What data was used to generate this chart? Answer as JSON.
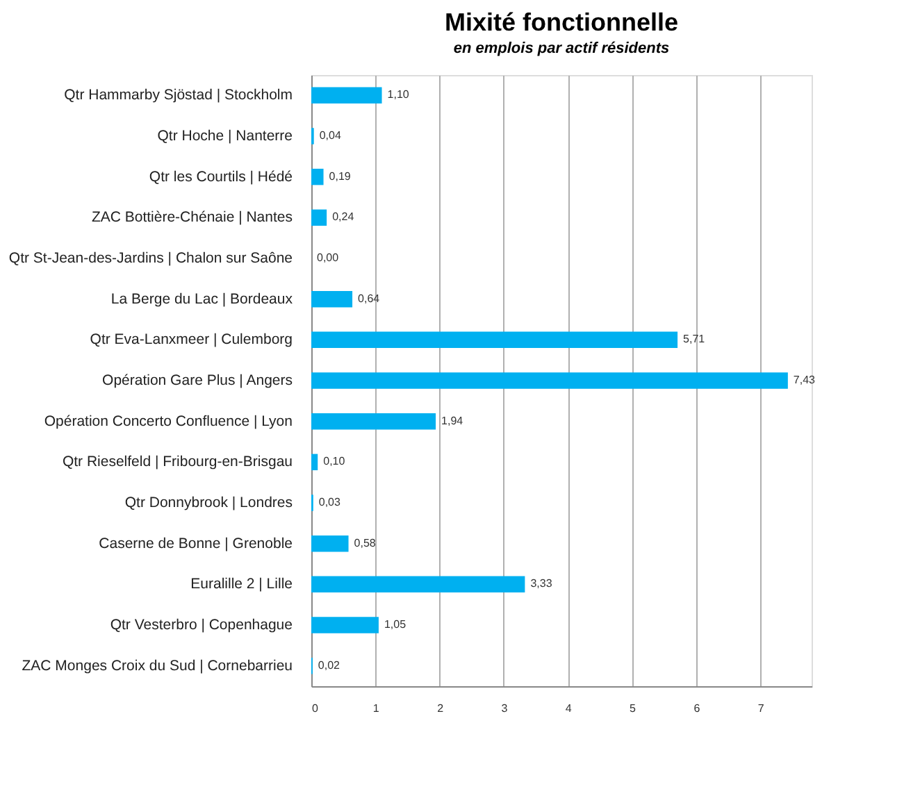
{
  "chart_data": {
    "type": "bar",
    "orientation": "horizontal",
    "title": "Mixité fonctionnelle",
    "subtitle": "en emplois par actif résidents",
    "categories": [
      "Qtr Hammarby Sjöstad  |  Stockholm",
      "Qtr Hoche | Nanterre",
      "Qtr les Courtils | Hédé",
      "ZAC Bottière-Chénaie | Nantes",
      "Qtr St-Jean-des-Jardins | Chalon sur Saône",
      "La Berge du Lac | Bordeaux",
      "Qtr Eva-Lanxmeer | Culemborg",
      "Opération Gare Plus | Angers",
      "Opération Concerto Confluence | Lyon",
      "Qtr Rieselfeld | Fribourg-en-Brisgau",
      "Qtr Donnybrook | Londres",
      "Caserne de Bonne | Grenoble",
      "Euralille 2 | Lille",
      "Qtr Vesterbro | Copenhague",
      "ZAC Monges Croix du Sud | Cornebarrieu"
    ],
    "values": [
      1.1,
      0.04,
      0.19,
      0.24,
      0.0,
      0.64,
      5.71,
      7.43,
      1.94,
      0.1,
      0.03,
      0.58,
      3.33,
      1.05,
      0.02
    ],
    "value_labels": [
      "1,10",
      "0,04",
      "0,19",
      "0,24",
      "0,00",
      "0,64",
      "5,71",
      "7,43",
      "1,94",
      "0,10",
      "0,03",
      "0,58",
      "3,33",
      "1,05",
      "0,02"
    ],
    "color": "#00b0f0",
    "xlim": [
      0,
      7.8
    ],
    "xticks": [
      0,
      1,
      2,
      3,
      4,
      5,
      6,
      7
    ],
    "grid": "x"
  }
}
